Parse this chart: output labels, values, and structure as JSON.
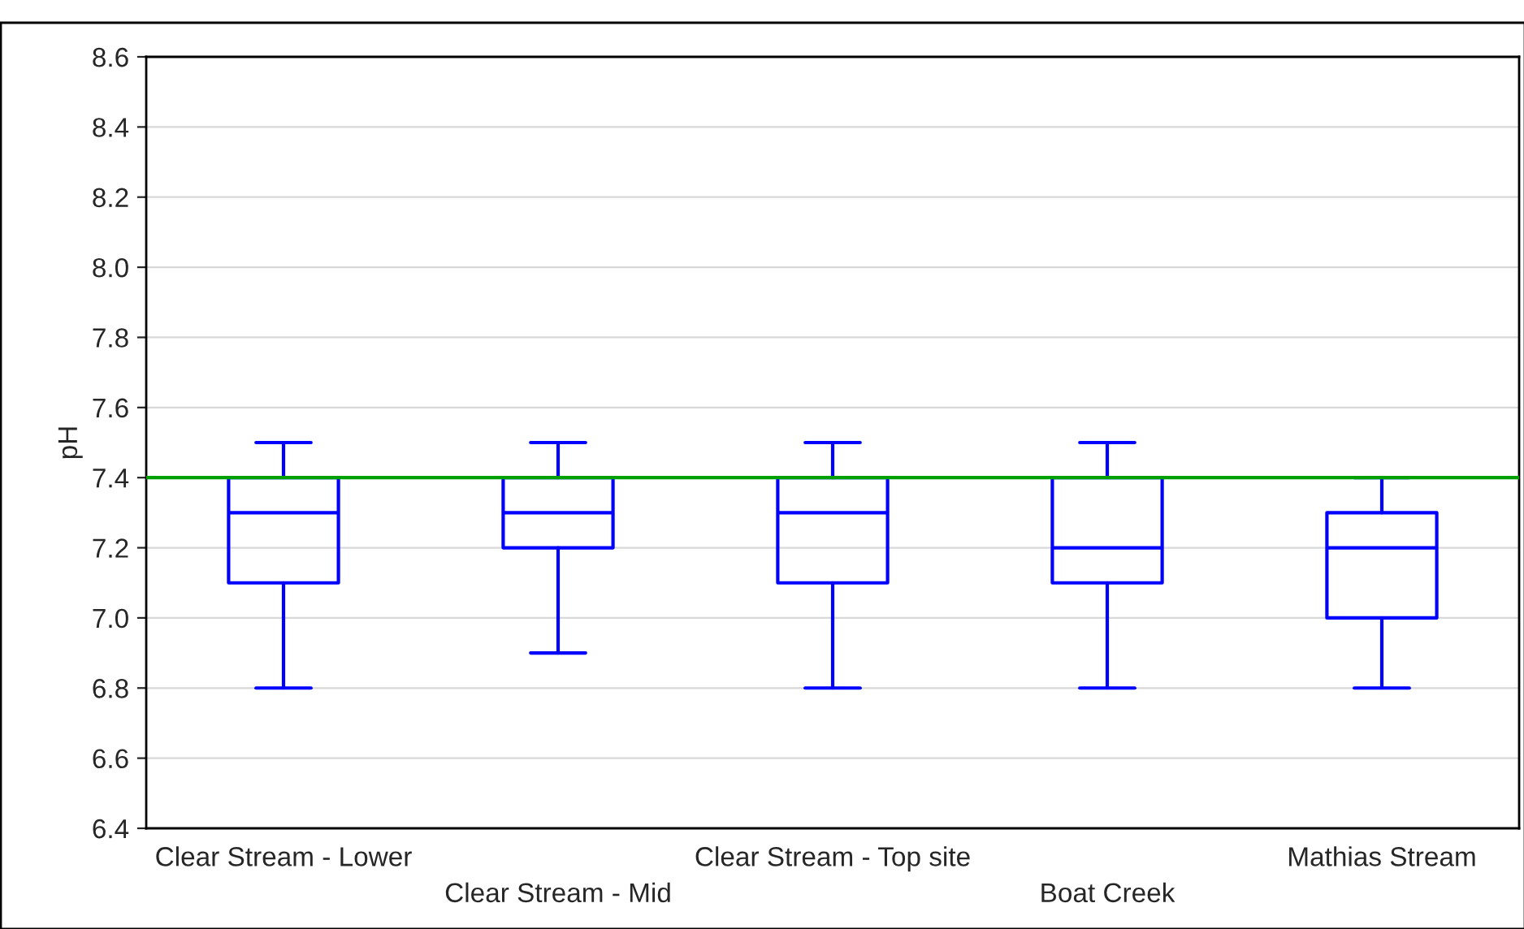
{
  "chart_data": {
    "type": "box",
    "ylabel": "pH",
    "categories": [
      "Clear Stream - Lower",
      "Clear Stream - Mid",
      "Clear Stream - Top site",
      "Boat Creek",
      "Mathias Stream"
    ],
    "boxes": [
      {
        "low": 6.8,
        "q1": 7.1,
        "median": 7.3,
        "q3": 7.4,
        "high": 7.5
      },
      {
        "low": 6.9,
        "q1": 7.2,
        "median": 7.3,
        "q3": 7.4,
        "high": 7.5
      },
      {
        "low": 6.8,
        "q1": 7.1,
        "median": 7.3,
        "q3": 7.4,
        "high": 7.5
      },
      {
        "low": 6.8,
        "q1": 7.1,
        "median": 7.2,
        "q3": 7.4,
        "high": 7.5
      },
      {
        "low": 6.8,
        "q1": 7.0,
        "median": 7.2,
        "q3": 7.3,
        "high": 7.4
      }
    ],
    "color": "#0000ff",
    "ylim": [
      6.4,
      8.6
    ],
    "yticks": [
      {
        "value": 6.4,
        "label": "6.4"
      },
      {
        "value": 6.6,
        "label": "6.6"
      },
      {
        "value": 6.8,
        "label": "6.8"
      },
      {
        "value": 7.0,
        "label": "7.0"
      },
      {
        "value": 7.2,
        "label": "7.2"
      },
      {
        "value": 7.4,
        "label": "7.4"
      },
      {
        "value": 7.6,
        "label": "7.6"
      },
      {
        "value": 7.8,
        "label": "7.8"
      },
      {
        "value": 8.0,
        "label": "8.0"
      },
      {
        "value": 8.2,
        "label": "8.2"
      },
      {
        "value": 8.4,
        "label": "8.4"
      },
      {
        "value": 8.6,
        "label": "8.6"
      }
    ],
    "ref_lines": [
      {
        "axis": "y",
        "value": 7.4,
        "label": null,
        "color": "#00a000"
      }
    ],
    "grid": "y"
  }
}
